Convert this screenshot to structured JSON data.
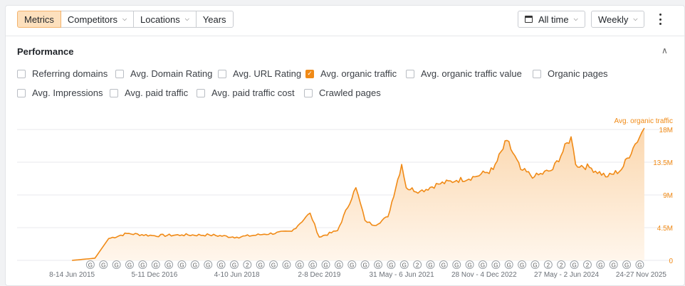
{
  "toolbar": {
    "tabs": [
      {
        "label": "Metrics",
        "active": true,
        "dropdown": false
      },
      {
        "label": "Competitors",
        "active": false,
        "dropdown": true
      },
      {
        "label": "Locations",
        "active": false,
        "dropdown": true
      },
      {
        "label": "Years",
        "active": false,
        "dropdown": false
      }
    ],
    "date_range": "All time",
    "interval": "Weekly"
  },
  "performance": {
    "title": "Performance",
    "metrics_row1": [
      {
        "label": "Referring domains",
        "checked": false
      },
      {
        "label": "Avg. Domain Rating",
        "checked": false
      },
      {
        "label": "Avg. URL Rating",
        "checked": false
      },
      {
        "label": "Avg. organic traffic",
        "checked": true
      },
      {
        "label": "Avg. organic traffic value",
        "checked": false
      },
      {
        "label": "Organic pages",
        "checked": false
      }
    ],
    "metrics_row2": [
      {
        "label": "Avg. Impressions",
        "checked": false
      },
      {
        "label": "Avg. paid traffic",
        "checked": false
      },
      {
        "label": "Avg. paid traffic cost",
        "checked": false
      },
      {
        "label": "Crawled pages",
        "checked": false
      }
    ]
  },
  "colors": {
    "accent": "#f08a16",
    "area_top": "#fbd7ae",
    "area_bottom": "#fff6ec"
  },
  "chart_data": {
    "type": "area",
    "series": [
      {
        "name": "Avg. organic traffic",
        "x": [
          "2015-06",
          "2015-11",
          "2016-02",
          "2016-06",
          "2016-12",
          "2017-06",
          "2017-12",
          "2018-06",
          "2018-12",
          "2019-06",
          "2019-10",
          "2019-12",
          "2020-04",
          "2020-08",
          "2020-10",
          "2020-12",
          "2021-03",
          "2021-06",
          "2021-07",
          "2021-10",
          "2022-02",
          "2022-06",
          "2022-10",
          "2023-02",
          "2023-05",
          "2023-08",
          "2023-11",
          "2024-03",
          "2024-07",
          "2024-08",
          "2024-11",
          "2025-03",
          "2025-06",
          "2025-09",
          "2025-11"
        ],
        "values": [
          0,
          0.3,
          3.0,
          3.7,
          3.4,
          3.5,
          3.5,
          3.2,
          3.6,
          4.0,
          6.5,
          3.2,
          4.1,
          10.0,
          5.5,
          4.8,
          6.0,
          13.2,
          10.0,
          9.5,
          10.5,
          11.0,
          11.5,
          12.5,
          16.5,
          12.5,
          11.5,
          12.5,
          17.0,
          13.2,
          12.8,
          11.5,
          12.5,
          16.0,
          18.2
        ]
      }
    ],
    "ylim": [
      0,
      18.2
    ],
    "y_ticks": [
      "18M",
      "13.5M",
      "9M",
      "4.5M",
      "0"
    ],
    "y_tick_values": [
      18,
      13.5,
      9,
      4.5,
      0
    ],
    "y_axis_label": "Avg. organic traffic",
    "x_ticks": [
      "8-14 Jun 2015",
      "5-11 Dec 2016",
      "4-10 Jun 2018",
      "2-8 Dec 2019",
      "31 May - 6 Jun 2021",
      "28 Nov - 4 Dec 2022",
      "27 May - 2 Jun 2024",
      "24-27 Nov 2025"
    ],
    "x_tick_dates": [
      "2015-06",
      "2016-12",
      "2018-06",
      "2019-12",
      "2021-06",
      "2022-12",
      "2024-06",
      "2025-11"
    ],
    "grid": true,
    "annotations": [
      "G",
      "G",
      "G",
      "G",
      "G",
      "G",
      "G",
      "G",
      "G",
      "G",
      "G",
      "G",
      "2",
      "G",
      "G",
      "G",
      "G",
      "G",
      "G",
      "G",
      "G",
      "G",
      "G",
      "G",
      "G",
      "2",
      "G",
      "G",
      "G",
      "G",
      "G",
      "G",
      "G",
      "G",
      "G",
      "2",
      "2",
      "G",
      "2",
      "G",
      "G",
      "G",
      "G"
    ]
  }
}
